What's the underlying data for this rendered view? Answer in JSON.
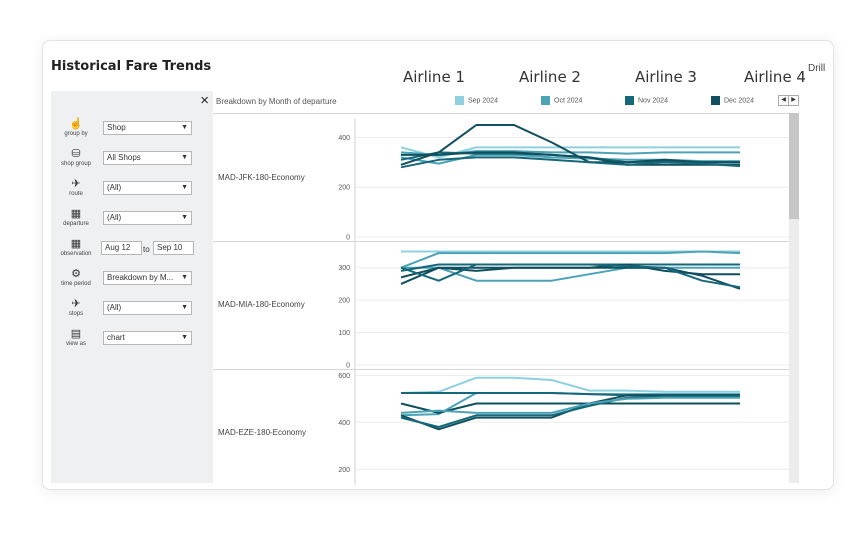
{
  "title": "Historical Fare Trends",
  "airlines": [
    "Airline 1",
    "Airline 2",
    "Airline 3",
    "Airline 4"
  ],
  "drill_label": "Drill",
  "close_icon": "×",
  "filters": [
    {
      "icon": "pointer-icon",
      "glyph": "☝",
      "label": "group by",
      "value": "Shop"
    },
    {
      "icon": "shop-group-icon",
      "glyph": "⛁",
      "label": "shop group",
      "value": "All Shops"
    },
    {
      "icon": "route-icon",
      "glyph": "✈",
      "label": "route",
      "value": "(All)"
    },
    {
      "icon": "calendar-icon",
      "glyph": "▦",
      "label": "departure",
      "value": "(All)"
    },
    {
      "icon": "calendar-icon",
      "glyph": "▦",
      "label": "observation",
      "from": "Aug 12",
      "to_label": "to",
      "to": "Sep 10"
    },
    {
      "icon": "gear-icon",
      "glyph": "⚙",
      "label": "time period",
      "value": "Breakdown by M..."
    },
    {
      "icon": "stops-icon",
      "glyph": "✈",
      "label": "stops",
      "value": "(All)"
    },
    {
      "icon": "chart-table-icon",
      "glyph": "▤",
      "label": "view as",
      "value": "chart"
    }
  ],
  "breakdown_label": "Breakdown by Month of departure",
  "legend": [
    {
      "label": "Sep 2024",
      "color": "#8fd0df"
    },
    {
      "label": "Oct 2024",
      "color": "#4ba3b6"
    },
    {
      "label": "Nov 2024",
      "color": "#16677a"
    },
    {
      "label": "Dec 2024",
      "color": "#0f4f5e"
    }
  ],
  "chart_data": {
    "type": "line",
    "panels": [
      {
        "route": "MAD-JFK-180-Economy",
        "ylim": [
          0,
          450
        ],
        "yticks": [
          0,
          200,
          400
        ],
        "series": [
          {
            "color": "#8fd0df",
            "values": [
              360,
              320,
              360,
              360,
              360,
              360,
              360,
              360,
              360,
              360
            ]
          },
          {
            "color": "#4ba3b6",
            "values": [
              340,
              330,
              345,
              345,
              340,
              340,
              335,
              340,
              340,
              340
            ]
          },
          {
            "color": "#4ba3b6",
            "values": [
              320,
              295,
              330,
              330,
              320,
              315,
              310,
              310,
              305,
              305
            ]
          },
          {
            "color": "#16677a",
            "values": [
              310,
              340,
              335,
              335,
              330,
              320,
              300,
              305,
              300,
              300
            ]
          },
          {
            "color": "#0f4f5e",
            "values": [
              290,
              340,
              450,
              450,
              380,
              300,
              300,
              310,
              300,
              300
            ]
          },
          {
            "color": "#0f4f5e",
            "values": [
              330,
              330,
              340,
              340,
              330,
              320,
              290,
              290,
              290,
              290
            ]
          },
          {
            "color": "#16677a",
            "values": [
              280,
              310,
              320,
              320,
              310,
              300,
              290,
              300,
              295,
              285
            ]
          }
        ]
      },
      {
        "route": "MAD-MIA-180-Economy",
        "ylim": [
          0,
          370
        ],
        "yticks": [
          0,
          100,
          200,
          300
        ],
        "series": [
          {
            "color": "#8fd0df",
            "values": [
              350,
              350,
              350,
              350,
              350,
              350,
              350,
              350,
              350,
              350
            ]
          },
          {
            "color": "#4ba3b6",
            "values": [
              300,
              345,
              345,
              345,
              345,
              345,
              345,
              345,
              350,
              345
            ]
          },
          {
            "color": "#4ba3b6",
            "values": [
              300,
              300,
              260,
              260,
              260,
              280,
              300,
              300,
              300,
              300
            ]
          },
          {
            "color": "#16677a",
            "values": [
              290,
              310,
              310,
              310,
              310,
              310,
              310,
              310,
              310,
              310
            ]
          },
          {
            "color": "#0f4f5e",
            "values": [
              250,
              300,
              300,
              300,
              300,
              300,
              300,
              300,
              275,
              235
            ]
          },
          {
            "color": "#0f4f5e",
            "values": [
              270,
              300,
              290,
              300,
              300,
              300,
              310,
              290,
              280,
              280
            ]
          },
          {
            "color": "#16677a",
            "values": [
              300,
              260,
              310,
              310,
              310,
              310,
              305,
              300,
              260,
              240
            ]
          }
        ]
      },
      {
        "route": "MAD-EZE-180-Economy",
        "ylim": [
          150,
          610
        ],
        "yticks": [
          200,
          400,
          600
        ],
        "series": [
          {
            "color": "#8fd0df",
            "values": [
              525,
              530,
              590,
              590,
              580,
              535,
              535,
              530,
              530,
              530
            ]
          },
          {
            "color": "#4ba3b6",
            "values": [
              430,
              435,
              525,
              525,
              525,
              520,
              520,
              520,
              520,
              520
            ]
          },
          {
            "color": "#16677a",
            "values": [
              525,
              525,
              525,
              525,
              525,
              520,
              515,
              515,
              515,
              515
            ]
          },
          {
            "color": "#0f4f5e",
            "values": [
              480,
              440,
              480,
              480,
              480,
              480,
              480,
              480,
              480,
              480
            ]
          },
          {
            "color": "#0f4f5e",
            "values": [
              430,
              370,
              420,
              420,
              420,
              480,
              515,
              515,
              515,
              515
            ]
          },
          {
            "color": "#16677a",
            "values": [
              420,
              380,
              430,
              430,
              430,
              470,
              505,
              510,
              510,
              510
            ]
          },
          {
            "color": "#4ba3b6",
            "values": [
              440,
              450,
              440,
              440,
              440,
              480,
              500,
              505,
              505,
              505
            ]
          }
        ]
      }
    ]
  }
}
